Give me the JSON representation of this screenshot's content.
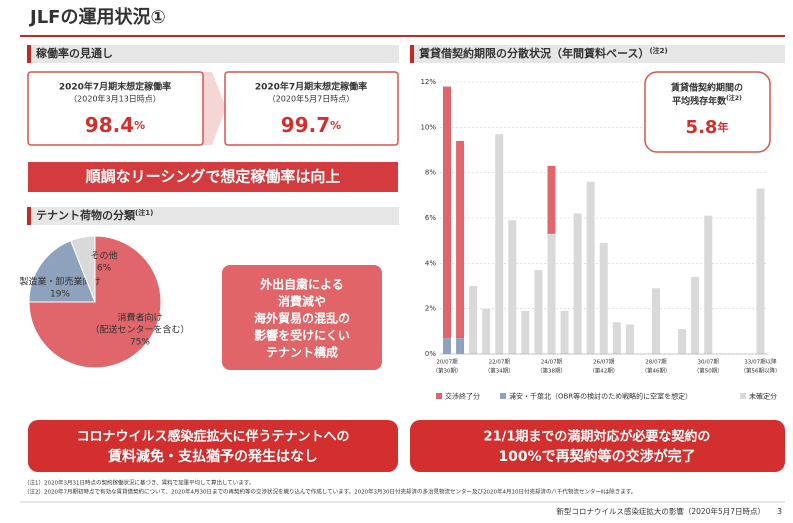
{
  "header": {
    "title": "JLFの運用状況①"
  },
  "occupancy": {
    "heading": "稼働率の見通し",
    "cards": [
      {
        "label": "2020年7月期末想定稼働率",
        "date": "（2020年3月13日時点）",
        "value": "98.4",
        "unit": "%"
      },
      {
        "label": "2020年7月期末想定稼働率",
        "date": "（2020年5月7日時点）",
        "value": "99.7",
        "unit": "%"
      }
    ],
    "banner": "順調なリーシングで想定稼働率は向上"
  },
  "tenants": {
    "heading": "テナント荷物の分類",
    "note": "(注1)",
    "callout": [
      "外出自粛による",
      "消費減や",
      "海外貿易の混乱の",
      "影響を受けにくい",
      "テナント構成"
    ]
  },
  "lease": {
    "heading": "賃貸借契約期限の分散状況（年間賃料ベース）",
    "note": "(注2)",
    "callout_title": [
      "賃貸借契約期間の",
      "平均残存年数"
    ],
    "callout_note": "(注2)",
    "callout_value": "5.8",
    "callout_unit": "年"
  },
  "bottom": {
    "left": [
      "コロナウイルス感染症拡大に伴うテナントへの",
      "賃料減免・支払猶予の発生はなし"
    ],
    "right": [
      "21/1期までの満期対応が必要な契約の",
      "100%で再契約等の交渉が完了"
    ]
  },
  "footnotes": [
    "（注1）2020年3月31日時点の契約稼働状況に基づき、賃料で加重平均して算出しています。",
    "（注2）2020年7月期初時点で有効な賃貸借契約について、2020年4月30日までの再契約等の交渉状況を織り込んで作成しています。2020年3月30日付売却済の多治見物流センター及び2020年4月10日付売却済の八千代物流センターⅡは除きます。"
  ],
  "footer": {
    "text": "新型コロナウイルス感染症拡大の影響（2020年5月7日時点）",
    "page": "3"
  },
  "chart_data": [
    {
      "type": "pie",
      "categories": [
        [
          "消費者向け",
          "（配送センターを含む）"
        ],
        [
          "製造業・卸売業向け"
        ],
        [
          "その他"
        ]
      ],
      "values": [
        75,
        19,
        6
      ],
      "value_labels": [
        "75%",
        "19%",
        "6%"
      ],
      "colors": [
        "#e0666b",
        "#8fa2bd",
        "#d9d9d9"
      ]
    },
    {
      "type": "bar",
      "stacked": true,
      "categories": [
        [
          "20/07期",
          "（第30期）"
        ],
        null,
        null,
        null,
        [
          "22/07期",
          "（第34期）"
        ],
        null,
        null,
        null,
        [
          "24/07期",
          "（第38期）"
        ],
        null,
        null,
        null,
        [
          "26/07期",
          "（第42期）"
        ],
        null,
        null,
        null,
        [
          "28/07期",
          "（第46期）"
        ],
        null,
        null,
        null,
        [
          "30/07期",
          "（第50期）"
        ],
        null,
        null,
        null,
        [
          "33/07期以降",
          "（第56期以降）"
        ]
      ],
      "series": [
        {
          "name": "交渉終了分",
          "color": "#e0666b",
          "values": [
            11.1,
            8.7,
            0,
            0,
            0,
            0,
            0,
            0,
            3.0,
            0,
            0,
            0,
            0,
            0,
            0,
            0,
            0,
            0,
            0,
            0,
            0,
            0,
            0,
            0,
            0
          ]
        },
        {
          "name": "浦安・千葉北（OBR等の検討のため戦略的に空室を想定）",
          "color": "#8fa2bd",
          "values": [
            0.7,
            0.7,
            0,
            0,
            0,
            0,
            0,
            0,
            0,
            0,
            0,
            0,
            0,
            0,
            0,
            0,
            0,
            0,
            0,
            0,
            0,
            0,
            0,
            0,
            0
          ]
        },
        {
          "name": "未確定分",
          "color": "#d9d9d9",
          "values": [
            0,
            0,
            3.0,
            2.0,
            9.7,
            5.9,
            1.9,
            3.7,
            5.3,
            1.9,
            6.2,
            7.6,
            4.9,
            1.4,
            1.3,
            0,
            2.9,
            0,
            1.1,
            3.4,
            6.1,
            0,
            0,
            0,
            7.3
          ]
        }
      ],
      "ylim": [
        0,
        12
      ],
      "yticks": [
        {
          "value": 0,
          "label": "0%"
        },
        {
          "value": 2,
          "label": "2%"
        },
        {
          "value": 4,
          "label": "4%"
        },
        {
          "value": 6,
          "label": "6%"
        },
        {
          "value": 8,
          "label": "8%"
        },
        {
          "value": 10,
          "label": "10%"
        },
        {
          "value": 12,
          "label": "12%"
        }
      ],
      "grid": true
    }
  ]
}
